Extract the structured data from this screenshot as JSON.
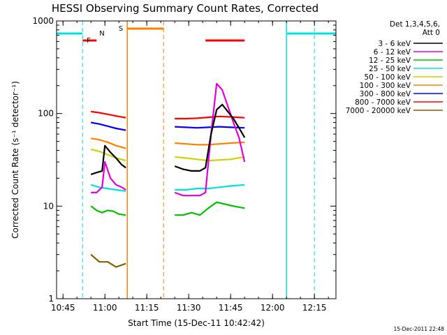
{
  "chart_data": {
    "type": "line",
    "title": "HESSI Observing Summary Count Rates, Corrected",
    "xlabel": "Start Time (15-Dec-11 10:42:42)",
    "ylabel": "Corrected Count Rate (s⁻¹ detector⁻¹)",
    "yscale": "log",
    "ylim": [
      1,
      1000
    ],
    "xlim": [
      "10:42:42",
      "12:22:42"
    ],
    "x_ticks": [
      "10:45",
      "11:00",
      "11:15",
      "11:30",
      "11:45",
      "12:00",
      "12:15"
    ],
    "y_ticks": [
      "1",
      "10",
      "100",
      "1000"
    ],
    "legend_header": [
      "Det 1,3,4,5,6,",
      "Att 0"
    ],
    "legend_position": "right",
    "flag_markers": [
      "F",
      "N",
      "S"
    ],
    "timestamp": "15-Dec-2011 22:48",
    "series": [
      {
        "name": "3 - 6 keV",
        "color": "#000000",
        "segments": [
          {
            "x": [
              "10:55",
              "10:57",
              "10:59",
              "11:00",
              "11:02",
              "11:04",
              "11:06",
              "11:07.5"
            ],
            "y": [
              22,
              23,
              24,
              45,
              38,
              33,
              28,
              26
            ]
          },
          {
            "x": [
              "11:25",
              "11:28",
              "11:31",
              "11:34",
              "11:36",
              "11:38",
              "11:40",
              "11:42",
              "11:44",
              "11:46",
              "11:48",
              "11:50"
            ],
            "y": [
              27,
              25,
              24,
              24,
              26,
              60,
              110,
              125,
              105,
              88,
              70,
              55
            ]
          }
        ]
      },
      {
        "name": "6 - 12 keV",
        "color": "#e000e0",
        "segments": [
          {
            "x": [
              "10:55",
              "10:57",
              "10:59",
              "11:00",
              "11:02",
              "11:04",
              "11:06",
              "11:07.5"
            ],
            "y": [
              14,
              14,
              16,
              30,
              20,
              17,
              16,
              15
            ]
          },
          {
            "x": [
              "11:25",
              "11:28",
              "11:31",
              "11:34",
              "11:36",
              "11:38",
              "11:40",
              "11:42",
              "11:44",
              "11:46",
              "11:48",
              "11:50"
            ],
            "y": [
              14,
              13,
              13,
              13,
              14,
              60,
              210,
              180,
              120,
              80,
              55,
              30
            ]
          }
        ]
      },
      {
        "name": "12 - 25 keV",
        "color": "#00c000",
        "segments": [
          {
            "x": [
              "10:55",
              "10:57",
              "10:59",
              "11:01",
              "11:03",
              "11:05",
              "11:07.5"
            ],
            "y": [
              10,
              9,
              8.5,
              9,
              8.8,
              8.2,
              8
            ]
          },
          {
            "x": [
              "11:25",
              "11:28",
              "11:31",
              "11:34",
              "11:37",
              "11:40",
              "11:43",
              "11:46",
              "11:50"
            ],
            "y": [
              8,
              8,
              8.5,
              8,
              9.5,
              11,
              10.5,
              10,
              9.5
            ]
          }
        ]
      },
      {
        "name": "25 - 50 keV",
        "color": "#00e0e0",
        "segments": [
          {
            "x": [
              "10:55",
              "10:58",
              "11:01",
              "11:04",
              "11:07.5"
            ],
            "y": [
              17,
              16,
              15.5,
              15,
              14.5
            ]
          },
          {
            "x": [
              "11:25",
              "11:29",
              "11:33",
              "11:37",
              "11:41",
              "11:45",
              "11:50"
            ],
            "y": [
              15,
              15,
              15.5,
              15.5,
              16,
              16.5,
              17
            ]
          }
        ]
      },
      {
        "name": "50 - 100 keV",
        "color": "#d0d000",
        "segments": [
          {
            "x": [
              "10:55",
              "10:58",
              "11:01",
              "11:04",
              "11:07.5"
            ],
            "y": [
              41,
              39,
              36,
              33,
              31
            ]
          },
          {
            "x": [
              "11:25",
              "11:29",
              "11:33",
              "11:37",
              "11:41",
              "11:45",
              "11:50"
            ],
            "y": [
              34,
              33,
              32,
              31,
              31.5,
              32,
              34
            ]
          }
        ]
      },
      {
        "name": "100 - 300 keV",
        "color": "#ff8000",
        "segments": [
          {
            "x": [
              "10:55",
              "10:58",
              "11:01",
              "11:04",
              "11:07.5"
            ],
            "y": [
              54,
              52,
              49,
              45,
              42
            ]
          },
          {
            "x": [
              "11:25",
              "11:29",
              "11:33",
              "11:37",
              "11:41",
              "11:45",
              "11:50"
            ],
            "y": [
              48,
              47,
              46,
              46,
              47,
              48,
              49
            ]
          }
        ]
      },
      {
        "name": "300 - 800 keV",
        "color": "#0000ff",
        "segments": [
          {
            "x": [
              "10:55",
              "10:58",
              "11:01",
              "11:04",
              "11:07.5"
            ],
            "y": [
              80,
              77,
              73,
              69,
              66
            ]
          },
          {
            "x": [
              "11:25",
              "11:29",
              "11:33",
              "11:37",
              "11:41",
              "11:45",
              "11:50"
            ],
            "y": [
              72,
              71,
              70,
              71,
              72,
              71,
              70
            ]
          }
        ]
      },
      {
        "name": "800 - 7000 keV",
        "color": "#ff0000",
        "segments": [
          {
            "x": [
              "10:55",
              "10:58",
              "11:01",
              "11:04",
              "11:07.5"
            ],
            "y": [
              105,
              102,
              98,
              94,
              90
            ]
          },
          {
            "x": [
              "11:25",
              "11:29",
              "11:33",
              "11:37",
              "11:41",
              "11:45",
              "11:50"
            ],
            "y": [
              88,
              88,
              89,
              91,
              93,
              92,
              90
            ]
          }
        ]
      },
      {
        "name": "7000 - 20000 keV",
        "color": "#806000",
        "segments": [
          {
            "x": [
              "10:55",
              "10:58",
              "11:01",
              "11:04",
              "11:07.5"
            ],
            "y": [
              3,
              2.5,
              2.5,
              2.2,
              2.4
            ]
          }
        ]
      }
    ],
    "flag_bars": [
      {
        "flag": "F",
        "color": "#ff0000",
        "intervals": [
          [
            "10:52",
            "10:57"
          ],
          [
            "11:36",
            "11:50"
          ]
        ]
      },
      {
        "flag": "N",
        "color": "#00e0e0",
        "intervals": [
          [
            "10:42:42",
            "10:52"
          ],
          [
            "12:05",
            "12:22:42"
          ]
        ]
      },
      {
        "flag": "S",
        "color": "#ff8000",
        "intervals": [
          [
            "11:08",
            "11:21"
          ]
        ]
      }
    ],
    "night_boundaries": [
      {
        "color": "#00e0e0",
        "solid": [
          "10:42:42",
          "12:05"
        ],
        "dashed": [
          "10:52",
          "12:15"
        ]
      },
      {
        "color": "#ff8000",
        "solid": [
          "11:08"
        ],
        "dashed": [
          "11:21"
        ]
      }
    ]
  }
}
